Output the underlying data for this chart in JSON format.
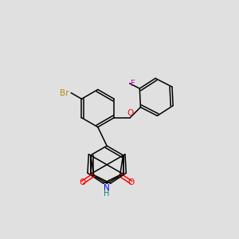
{
  "background_color": "#e0e0e0",
  "bond_color": "#000000",
  "atom_colors": {
    "Br": "#b8860b",
    "O": "#ff0000",
    "N": "#0000ff",
    "H": "#008080",
    "F": "#cc00cc"
  },
  "figsize": [
    3.0,
    3.0
  ],
  "dpi": 100
}
